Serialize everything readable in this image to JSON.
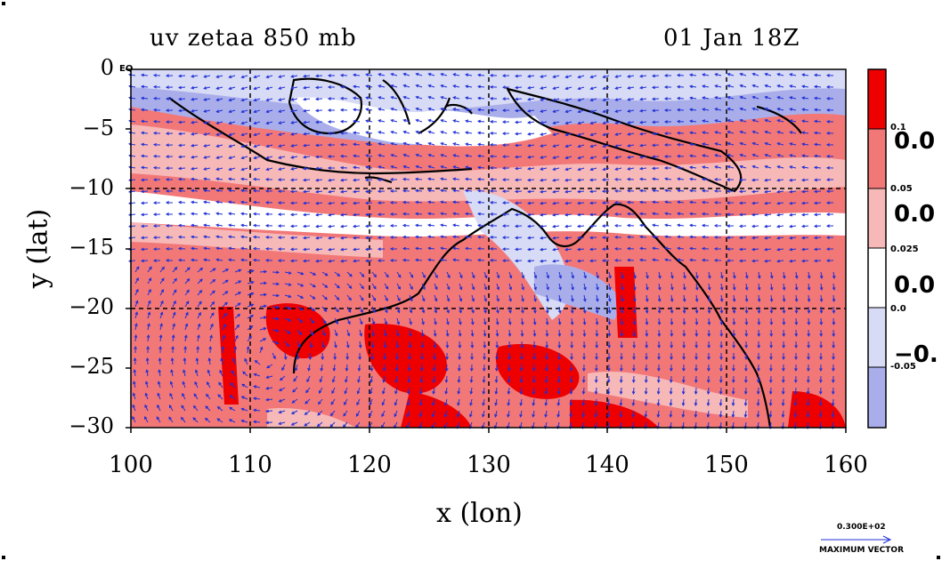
{
  "title": {
    "left": "uv zetaa 850 mb",
    "right": "01 Jan 18Z"
  },
  "axes": {
    "xlabel": "x (lon)",
    "ylabel": "y (lat)",
    "x_ticks": [
      "100",
      "110",
      "120",
      "130",
      "140",
      "150",
      "160"
    ],
    "y_ticks": [
      "0",
      "−5",
      "−10",
      "−15",
      "−20",
      "−25",
      "−30"
    ],
    "y_zero_suffix": "EQ",
    "xlim": [
      100,
      160
    ],
    "ylim": [
      -30,
      0
    ]
  },
  "colorbar": {
    "small_labels": [
      "0.1",
      "0.05",
      "0.025",
      "0.0",
      "-0.05"
    ],
    "large_labels": [
      "0.0",
      "0.0",
      "0.0",
      "−0."
    ],
    "colors": [
      "#ee0000",
      "#f27878",
      "#f7b8b8",
      "#ffffff",
      "#d8dbf5",
      "#a9aeea"
    ]
  },
  "vector_key": {
    "value": "0.300E+02",
    "caption": "MAXIMUM VECTOR"
  },
  "colors": {
    "strong_positive": "#ee0000",
    "positive": "#f27878",
    "weak_positive": "#f7b8b8",
    "weak_negative": "#d8dbf5",
    "negative": "#a9aeea",
    "contour": "#ee0000",
    "vectors": "#1f2fd6",
    "coastline": "#000000"
  }
}
